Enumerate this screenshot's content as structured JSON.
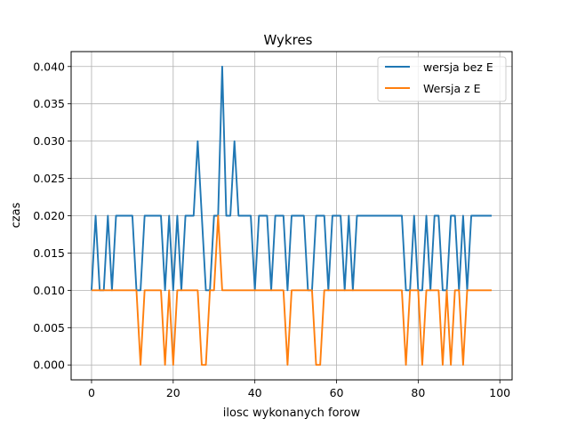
{
  "chart_data": {
    "type": "line",
    "title": "Wykres",
    "xlabel": "ilosc wykonanych forow",
    "ylabel": "czas",
    "xlim": [
      -5,
      103
    ],
    "ylim": [
      -0.002,
      0.042
    ],
    "xticks": [
      0,
      20,
      40,
      60,
      80,
      100
    ],
    "xtick_labels": [
      "0",
      "20",
      "40",
      "60",
      "80",
      "100"
    ],
    "yticks": [
      0.0,
      0.005,
      0.01,
      0.015,
      0.02,
      0.025,
      0.03,
      0.035,
      0.04
    ],
    "ytick_labels": [
      "0.000",
      "0.005",
      "0.010",
      "0.015",
      "0.020",
      "0.025",
      "0.030",
      "0.035",
      "0.040"
    ],
    "grid": true,
    "legend_position": "top-right",
    "series": [
      {
        "name": "wersja bez E",
        "color": "#1f77b4",
        "x": [
          0,
          1,
          2,
          3,
          4,
          5,
          6,
          7,
          8,
          9,
          10,
          11,
          12,
          13,
          14,
          15,
          16,
          17,
          18,
          19,
          20,
          21,
          22,
          23,
          24,
          25,
          26,
          27,
          28,
          29,
          30,
          31,
          32,
          33,
          34,
          35,
          36,
          37,
          38,
          39,
          40,
          41,
          42,
          43,
          44,
          45,
          46,
          47,
          48,
          49,
          50,
          51,
          52,
          53,
          54,
          55,
          56,
          57,
          58,
          59,
          60,
          61,
          62,
          63,
          64,
          65,
          66,
          67,
          68,
          69,
          70,
          71,
          72,
          73,
          74,
          75,
          76,
          77,
          78,
          79,
          80,
          81,
          82,
          83,
          84,
          85,
          86,
          87,
          88,
          89,
          90,
          91,
          92,
          93,
          94,
          95,
          96,
          97,
          98
        ],
        "values": [
          0.01,
          0.02,
          0.01,
          0.01,
          0.02,
          0.01,
          0.02,
          0.02,
          0.02,
          0.02,
          0.02,
          0.01,
          0.01,
          0.02,
          0.02,
          0.02,
          0.02,
          0.02,
          0.01,
          0.02,
          0.01,
          0.02,
          0.01,
          0.02,
          0.02,
          0.02,
          0.03,
          0.02,
          0.01,
          0.01,
          0.02,
          0.02,
          0.04,
          0.02,
          0.02,
          0.03,
          0.02,
          0.02,
          0.02,
          0.02,
          0.01,
          0.02,
          0.02,
          0.02,
          0.01,
          0.02,
          0.02,
          0.02,
          0.01,
          0.02,
          0.02,
          0.02,
          0.02,
          0.01,
          0.01,
          0.02,
          0.02,
          0.02,
          0.01,
          0.02,
          0.02,
          0.02,
          0.01,
          0.02,
          0.01,
          0.02,
          0.02,
          0.02,
          0.02,
          0.02,
          0.02,
          0.02,
          0.02,
          0.02,
          0.02,
          0.02,
          0.02,
          0.01,
          0.01,
          0.02,
          0.01,
          0.01,
          0.02,
          0.01,
          0.02,
          0.02,
          0.01,
          0.01,
          0.02,
          0.02,
          0.01,
          0.02,
          0.01,
          0.02,
          0.02,
          0.02,
          0.02,
          0.02,
          0.02
        ]
      },
      {
        "name": "Wersja z E",
        "color": "#ff7f0e",
        "x": [
          0,
          1,
          2,
          3,
          4,
          5,
          6,
          7,
          8,
          9,
          10,
          11,
          12,
          13,
          14,
          15,
          16,
          17,
          18,
          19,
          20,
          21,
          22,
          23,
          24,
          25,
          26,
          27,
          28,
          29,
          30,
          31,
          32,
          33,
          34,
          35,
          36,
          37,
          38,
          39,
          40,
          41,
          42,
          43,
          44,
          45,
          46,
          47,
          48,
          49,
          50,
          51,
          52,
          53,
          54,
          55,
          56,
          57,
          58,
          59,
          60,
          61,
          62,
          63,
          64,
          65,
          66,
          67,
          68,
          69,
          70,
          71,
          72,
          73,
          74,
          75,
          76,
          77,
          78,
          79,
          80,
          81,
          82,
          83,
          84,
          85,
          86,
          87,
          88,
          89,
          90,
          91,
          92,
          93,
          94,
          95,
          96,
          97,
          98
        ],
        "values": [
          0.01,
          0.01,
          0.01,
          0.01,
          0.01,
          0.01,
          0.01,
          0.01,
          0.01,
          0.01,
          0.01,
          0.01,
          0.0,
          0.01,
          0.01,
          0.01,
          0.01,
          0.01,
          0.0,
          0.01,
          0.0,
          0.01,
          0.01,
          0.01,
          0.01,
          0.01,
          0.01,
          0.0,
          0.0,
          0.01,
          0.01,
          0.02,
          0.01,
          0.01,
          0.01,
          0.01,
          0.01,
          0.01,
          0.01,
          0.01,
          0.01,
          0.01,
          0.01,
          0.01,
          0.01,
          0.01,
          0.01,
          0.01,
          0.0,
          0.01,
          0.01,
          0.01,
          0.01,
          0.01,
          0.01,
          0.0,
          0.0,
          0.01,
          0.01,
          0.01,
          0.01,
          0.01,
          0.01,
          0.01,
          0.01,
          0.01,
          0.01,
          0.01,
          0.01,
          0.01,
          0.01,
          0.01,
          0.01,
          0.01,
          0.01,
          0.01,
          0.01,
          0.0,
          0.01,
          0.01,
          0.01,
          0.0,
          0.01,
          0.01,
          0.01,
          0.01,
          0.0,
          0.01,
          0.0,
          0.01,
          0.01,
          0.0,
          0.01,
          0.01,
          0.01,
          0.01,
          0.01,
          0.01,
          0.01
        ]
      }
    ]
  }
}
